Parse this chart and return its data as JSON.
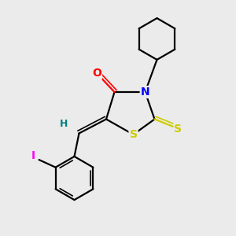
{
  "background_color": "#ebebeb",
  "bond_color": "#000000",
  "atom_colors": {
    "O": "#ff0000",
    "N": "#0000ff",
    "S": "#cccc00",
    "I": "#ff00ff",
    "H": "#008080",
    "C": "#000000"
  },
  "figsize": [
    3.0,
    3.0
  ],
  "dpi": 100,
  "xlim": [
    0,
    10
  ],
  "ylim": [
    0,
    10
  ]
}
